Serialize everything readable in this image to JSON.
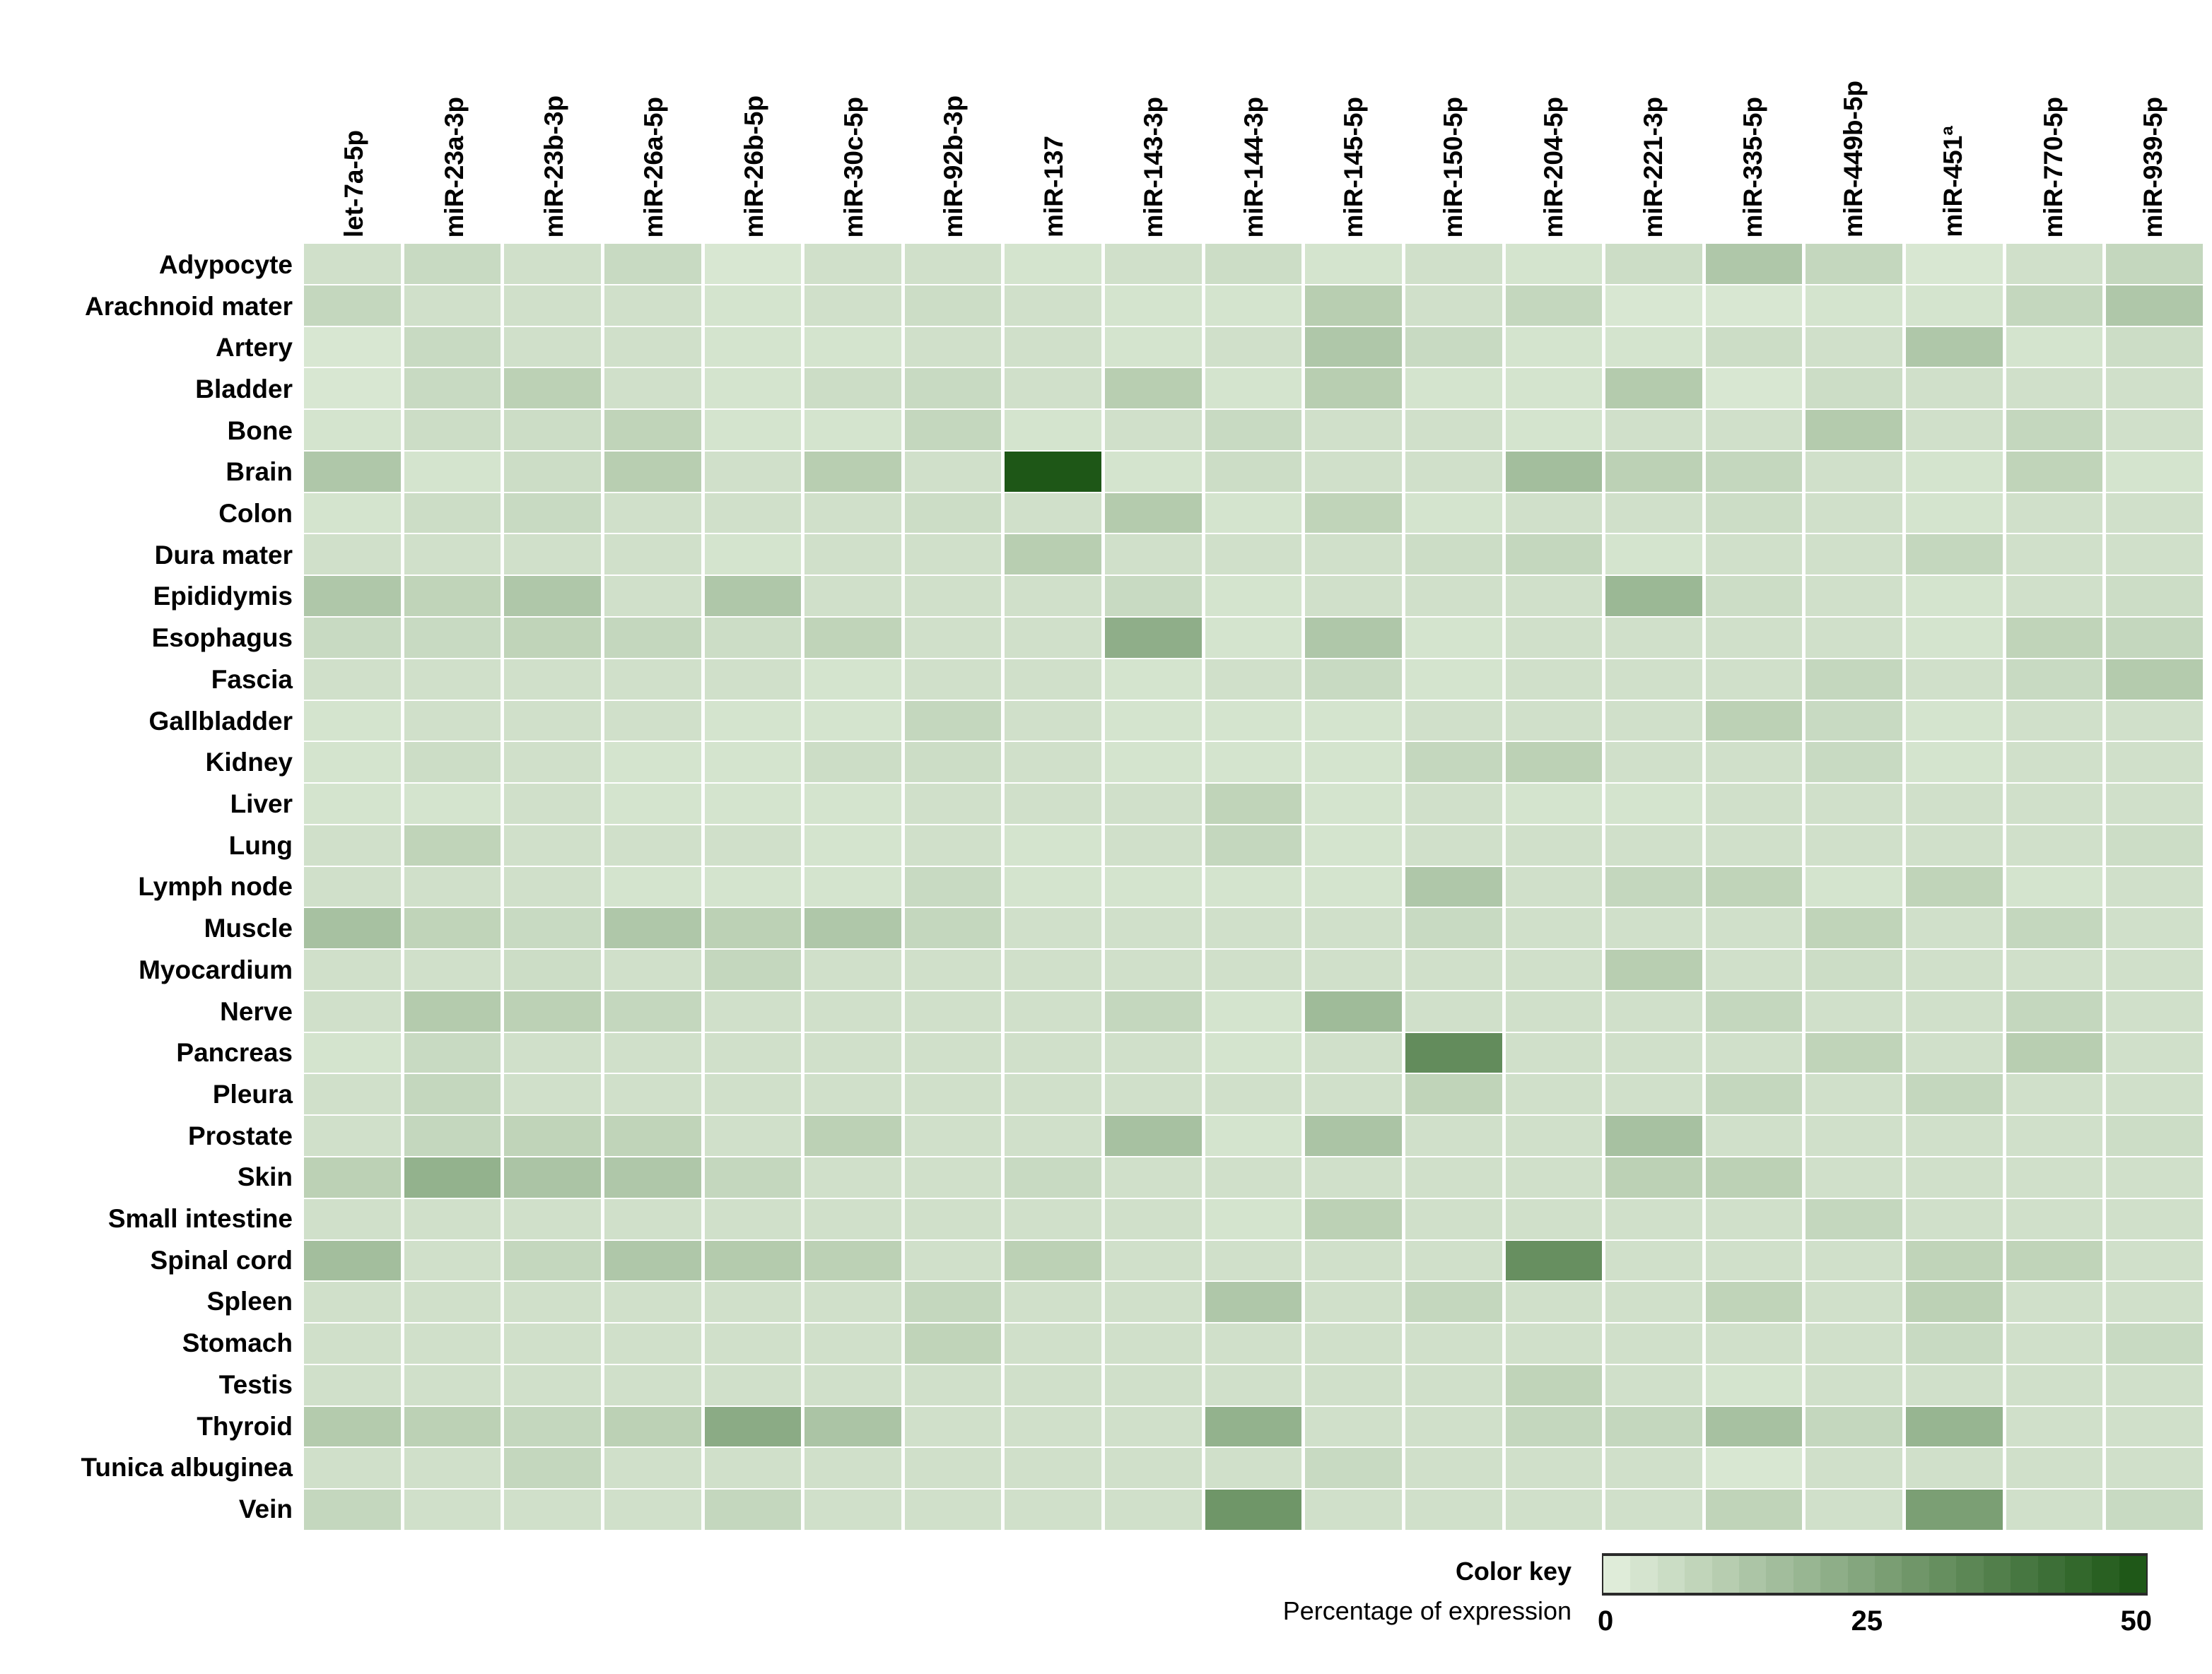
{
  "color_key": {
    "title": "Color key",
    "subtitle": "Percentage of expression",
    "ticks": [
      "0",
      "25",
      "50"
    ],
    "min_color": "#e4f0de",
    "max_color": "#1a5413",
    "steps": 20
  },
  "chart_data": {
    "type": "heatmap",
    "title": "",
    "xlabel": "",
    "ylabel": "",
    "legend_position": "bottom-right",
    "grid": "white-gaps",
    "scale": {
      "min": 0,
      "max": 50,
      "label": "Percentage of expression"
    },
    "colormap": {
      "low": "#e4f0de",
      "high": "#1a5413"
    },
    "x_labels": [
      "let-7a-5p",
      "miR-23a-3p",
      "miR-23b-3p",
      "miR-26a-5p",
      "miR-26b-5p",
      "miR-30c-5p",
      "miR-92b-3p",
      "miR-137",
      "miR-143-3p",
      "miR-144-3p",
      "miR-145-5p",
      "miR-150-5p",
      "miR-204-5p",
      "miR-221-3p",
      "miR-335-5p",
      "miR-449b-5p",
      "miR-451ª",
      "miR-770-5p",
      "miR-939-5p"
    ],
    "y_labels": [
      "Adypocyte",
      "Arachnoid mater",
      "Artery",
      "Bladder",
      "Bone",
      "Brain",
      "Colon",
      "Dura mater",
      "Epididymis",
      "Esophagus",
      "Fascia",
      "Gallbladder",
      "Kidney",
      "Liver",
      "Lung",
      "Lymph node",
      "Muscle",
      "Myocardium",
      "Nerve",
      "Pancreas",
      "Pleura",
      "Prostate",
      "Skin",
      "Small intestine",
      "Spinal cord",
      "Spleen",
      "Stomach",
      "Testis",
      "Thyroid",
      "Tunica albuginea",
      "Vein"
    ],
    "values": [
      [
        5,
        7,
        5,
        7,
        3,
        5,
        5,
        4,
        5,
        6,
        4,
        5,
        4,
        6,
        13,
        8,
        3,
        5,
        8
      ],
      [
        8,
        5,
        5,
        5,
        4,
        5,
        6,
        5,
        4,
        4,
        11,
        5,
        8,
        3,
        3,
        4,
        4,
        8,
        13
      ],
      [
        3,
        7,
        5,
        5,
        4,
        4,
        5,
        5,
        4,
        5,
        13,
        7,
        4,
        4,
        6,
        5,
        13,
        4,
        6
      ],
      [
        3,
        7,
        10,
        5,
        4,
        6,
        7,
        5,
        11,
        4,
        11,
        4,
        4,
        12,
        3,
        6,
        5,
        5,
        5
      ],
      [
        4,
        6,
        6,
        9,
        4,
        4,
        8,
        4,
        5,
        7,
        5,
        5,
        4,
        5,
        5,
        12,
        5,
        8,
        5
      ],
      [
        13,
        4,
        6,
        11,
        5,
        11,
        5,
        49,
        4,
        6,
        5,
        5,
        16,
        10,
        8,
        5,
        4,
        9,
        4
      ],
      [
        4,
        6,
        7,
        5,
        5,
        5,
        6,
        5,
        12,
        4,
        9,
        4,
        5,
        5,
        6,
        5,
        4,
        5,
        5
      ],
      [
        5,
        5,
        5,
        5,
        4,
        5,
        5,
        11,
        5,
        5,
        5,
        6,
        8,
        4,
        5,
        5,
        8,
        5,
        5
      ],
      [
        13,
        9,
        13,
        5,
        13,
        5,
        5,
        5,
        7,
        4,
        5,
        5,
        5,
        18,
        6,
        5,
        4,
        5,
        6
      ],
      [
        7,
        7,
        9,
        8,
        6,
        9,
        5,
        5,
        21,
        4,
        13,
        4,
        5,
        5,
        5,
        5,
        4,
        9,
        8
      ],
      [
        5,
        5,
        5,
        5,
        5,
        4,
        5,
        5,
        4,
        5,
        7,
        4,
        5,
        5,
        5,
        8,
        5,
        7,
        12
      ],
      [
        4,
        5,
        5,
        5,
        4,
        4,
        8,
        5,
        4,
        4,
        4,
        5,
        5,
        5,
        10,
        7,
        4,
        5,
        5
      ],
      [
        4,
        6,
        5,
        4,
        4,
        6,
        6,
        5,
        4,
        4,
        4,
        8,
        10,
        5,
        5,
        7,
        4,
        5,
        5
      ],
      [
        4,
        4,
        5,
        4,
        4,
        4,
        5,
        5,
        5,
        9,
        4,
        5,
        4,
        4,
        5,
        5,
        5,
        5,
        5
      ],
      [
        5,
        9,
        5,
        5,
        5,
        4,
        5,
        4,
        5,
        8,
        4,
        5,
        5,
        5,
        5,
        5,
        5,
        5,
        6
      ],
      [
        5,
        5,
        5,
        4,
        4,
        4,
        7,
        4,
        4,
        4,
        4,
        13,
        5,
        8,
        9,
        4,
        9,
        4,
        5
      ],
      [
        15,
        9,
        7,
        13,
        10,
        13,
        8,
        5,
        5,
        5,
        5,
        7,
        5,
        5,
        5,
        9,
        5,
        8,
        5
      ],
      [
        5,
        5,
        6,
        5,
        8,
        5,
        5,
        5,
        5,
        5,
        5,
        5,
        5,
        11,
        5,
        6,
        5,
        5,
        5
      ],
      [
        5,
        12,
        10,
        8,
        5,
        5,
        5,
        5,
        8,
        4,
        17,
        5,
        5,
        5,
        8,
        5,
        5,
        8,
        5
      ],
      [
        4,
        7,
        5,
        5,
        5,
        5,
        5,
        5,
        5,
        4,
        5,
        32,
        5,
        5,
        5,
        9,
        5,
        11,
        5
      ],
      [
        5,
        8,
        5,
        5,
        5,
        5,
        5,
        5,
        5,
        5,
        5,
        9,
        5,
        5,
        8,
        5,
        8,
        5,
        5
      ],
      [
        5,
        8,
        9,
        9,
        5,
        10,
        5,
        5,
        15,
        4,
        14,
        5,
        5,
        15,
        5,
        5,
        5,
        5,
        6
      ],
      [
        10,
        20,
        14,
        13,
        8,
        5,
        5,
        7,
        5,
        5,
        5,
        5,
        5,
        10,
        10,
        5,
        5,
        5,
        5
      ],
      [
        5,
        5,
        5,
        5,
        5,
        5,
        5,
        5,
        5,
        4,
        10,
        5,
        5,
        5,
        5,
        8,
        5,
        5,
        5
      ],
      [
        16,
        5,
        8,
        13,
        12,
        10,
        5,
        10,
        5,
        5,
        5,
        5,
        31,
        5,
        5,
        5,
        9,
        9,
        5
      ],
      [
        5,
        5,
        5,
        5,
        5,
        5,
        8,
        5,
        5,
        13,
        5,
        8,
        5,
        5,
        9,
        5,
        10,
        5,
        5
      ],
      [
        5,
        5,
        5,
        5,
        5,
        5,
        9,
        5,
        5,
        5,
        5,
        5,
        5,
        5,
        5,
        5,
        7,
        5,
        7
      ],
      [
        5,
        5,
        5,
        5,
        5,
        5,
        5,
        5,
        5,
        5,
        5,
        5,
        9,
        5,
        4,
        5,
        5,
        5,
        5
      ],
      [
        12,
        10,
        8,
        10,
        22,
        14,
        5,
        5,
        5,
        20,
        5,
        5,
        8,
        8,
        15,
        8,
        19,
        5,
        5
      ],
      [
        5,
        5,
        8,
        5,
        5,
        5,
        5,
        5,
        5,
        5,
        7,
        5,
        5,
        5,
        3,
        5,
        5,
        5,
        5
      ],
      [
        8,
        5,
        5,
        5,
        8,
        5,
        5,
        5,
        5,
        29,
        5,
        5,
        5,
        5,
        9,
        5,
        26,
        5,
        7
      ]
    ]
  }
}
